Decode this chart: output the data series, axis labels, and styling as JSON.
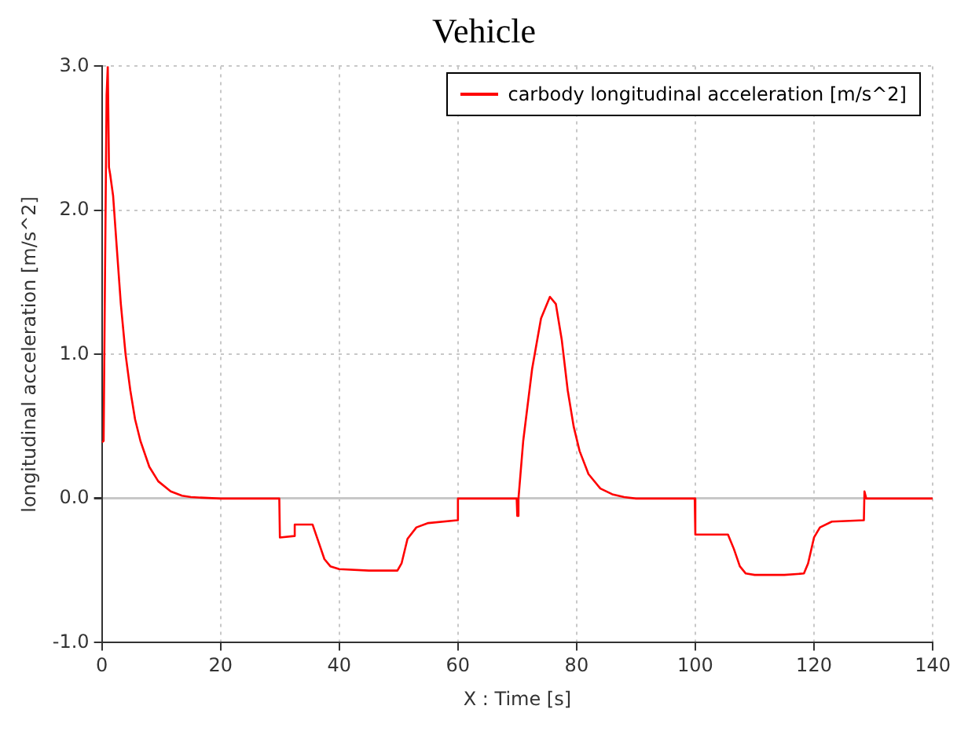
{
  "chart_data": {
    "type": "line",
    "title": "Vehicle",
    "xlabel": "X : Time [s]",
    "ylabel": "longitudinal acceleration [m/s^2]",
    "series": [
      {
        "name": "carbody longitudinal acceleration [m/s^2]",
        "color": "#ff0000",
        "x": [
          0,
          0.3,
          0.5,
          0.8,
          1.0,
          1.2,
          1.4,
          1.9,
          2.5,
          3.2,
          4.0,
          4.8,
          5.6,
          6.5,
          8.0,
          9.5,
          11.6,
          13.5,
          15,
          20,
          25,
          29.9,
          30.0,
          32.4,
          32.5,
          35.5,
          36.5,
          37.5,
          38.5,
          40,
          45,
          49.8,
          50.5,
          51.5,
          53,
          55,
          59.9,
          60.0,
          65,
          69.9,
          70.0,
          70.2,
          71,
          72.5,
          74,
          75.5,
          76.5,
          77.5,
          78.5,
          79.5,
          80.5,
          82,
          84,
          86,
          88,
          90,
          95,
          99.9,
          100.0,
          105.5,
          106.5,
          107.5,
          108.5,
          110,
          115,
          118.3,
          119,
          120,
          121,
          123,
          128.4,
          128.5,
          128.8,
          130,
          135,
          140
        ],
        "values": [
          0.39,
          0.4,
          1.4,
          2.8,
          3.0,
          2.3,
          2.25,
          2.1,
          1.75,
          1.35,
          1.0,
          0.75,
          0.55,
          0.4,
          0.22,
          0.12,
          0.05,
          0.02,
          0.01,
          0.0,
          0.0,
          0.0,
          -0.27,
          -0.26,
          -0.18,
          -0.18,
          -0.3,
          -0.42,
          -0.47,
          -0.49,
          -0.5,
          -0.5,
          -0.45,
          -0.28,
          -0.2,
          -0.17,
          -0.15,
          0.0,
          0.0,
          0.0,
          -0.12,
          0.0,
          0.4,
          0.9,
          1.25,
          1.4,
          1.35,
          1.1,
          0.75,
          0.5,
          0.33,
          0.17,
          0.07,
          0.03,
          0.01,
          0.0,
          0.0,
          0.0,
          -0.25,
          -0.25,
          -0.35,
          -0.47,
          -0.52,
          -0.53,
          -0.53,
          -0.52,
          -0.45,
          -0.27,
          -0.2,
          -0.16,
          -0.15,
          0.05,
          0.0,
          0.0,
          0.0,
          0.0
        ]
      }
    ],
    "xlim": [
      0,
      140
    ],
    "xticks": [
      0,
      20,
      40,
      60,
      80,
      100,
      120,
      140
    ],
    "ylim": [
      -1,
      3
    ],
    "yticks": [
      {
        "value": -1,
        "label": "-1.0"
      },
      {
        "value": 0,
        "label": "0.0"
      },
      {
        "value": 1,
        "label": "1.0"
      },
      {
        "value": 2,
        "label": "2.0"
      },
      {
        "value": 3,
        "label": "3.0"
      }
    ],
    "grid": true,
    "legend": "top right",
    "marker": "none",
    "line_style": "solid"
  }
}
